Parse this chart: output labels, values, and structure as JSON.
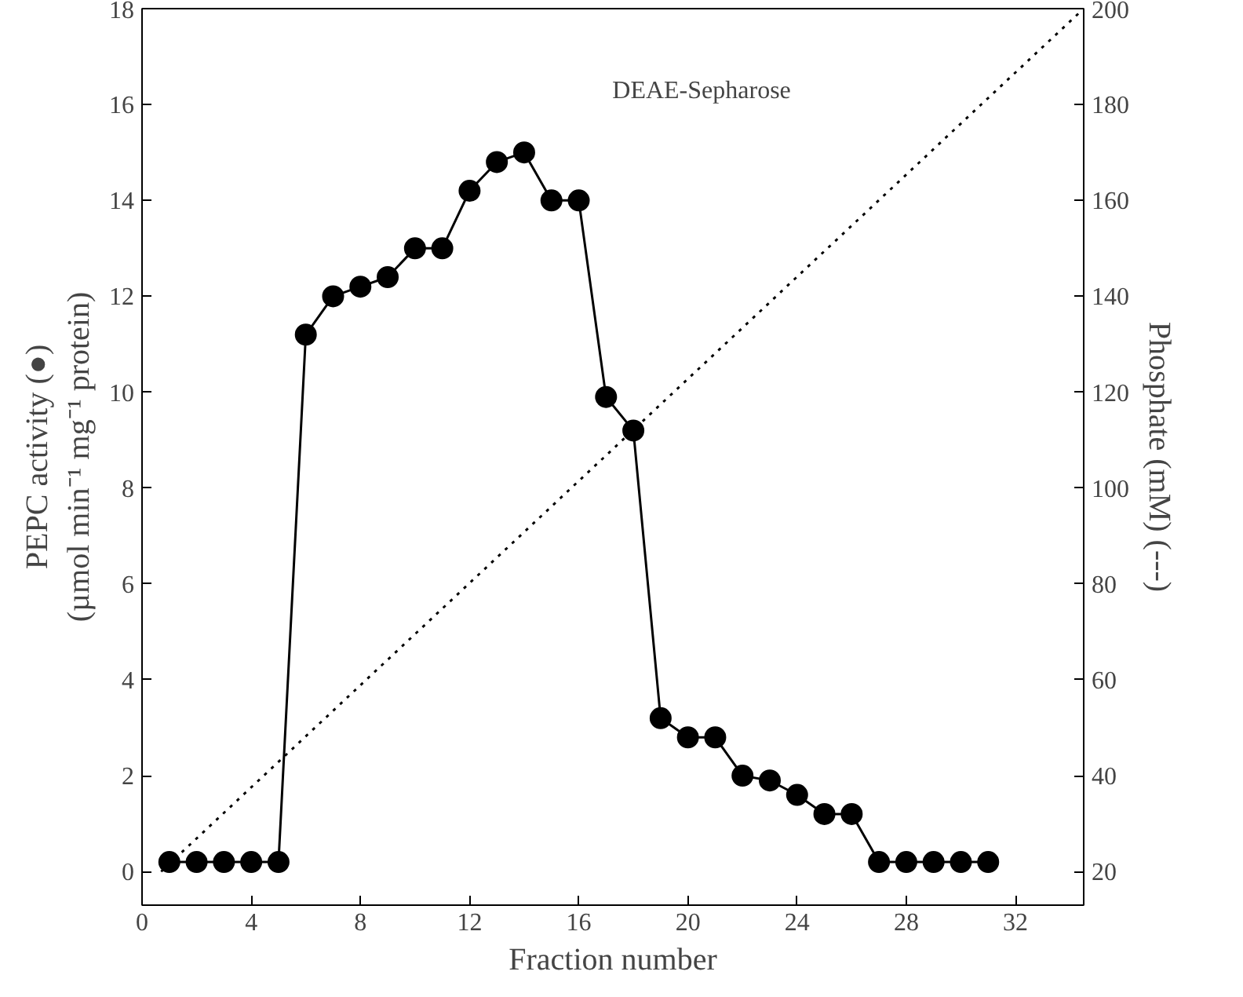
{
  "chart_data": {
    "type": "line",
    "xlabel": "Fraction number",
    "ylabel": "PEPC activity (●)\n(µmol min⁻¹ mg⁻¹ protein)",
    "y2label": "Phosphate (mM) (---)",
    "annotations": [
      "DEAE-Sepharose"
    ],
    "xlim": [
      0,
      34.5
    ],
    "xticks": [
      0,
      4,
      8,
      12,
      16,
      20,
      24,
      28,
      32
    ],
    "ylim": [
      -0.7,
      18
    ],
    "yticks": [
      0,
      2,
      4,
      6,
      8,
      10,
      12,
      14,
      16,
      18
    ],
    "y2lim": [
      13,
      200
    ],
    "y2ticks": [
      20,
      40,
      60,
      80,
      100,
      120,
      140,
      160,
      180,
      200
    ],
    "grid": false,
    "series": [
      {
        "marker": "circle",
        "line_style": "solid",
        "color": "#000000",
        "x": [
          1,
          2,
          3,
          4,
          5,
          6,
          7,
          8,
          9,
          10,
          11,
          12,
          13,
          14,
          15,
          16,
          17,
          18,
          19,
          20,
          21,
          22,
          23,
          24,
          25,
          26,
          27,
          28,
          29,
          30,
          31
        ],
        "values": [
          0.2,
          0.2,
          0.2,
          0.2,
          0.2,
          11.2,
          12.0,
          12.2,
          12.4,
          13.0,
          13.0,
          14.2,
          14.8,
          15.0,
          14.0,
          14.0,
          9.9,
          9.2,
          3.2,
          2.8,
          2.8,
          2.0,
          1.9,
          1.6,
          1.2,
          1.2,
          0.2,
          0.2,
          0.2,
          0.2,
          0.2
        ]
      },
      {
        "marker": "none",
        "line_style": "dotted",
        "axis": "y2",
        "color": "#000000",
        "x": [
          0.7,
          34.5
        ],
        "values": [
          20,
          200
        ]
      }
    ]
  }
}
